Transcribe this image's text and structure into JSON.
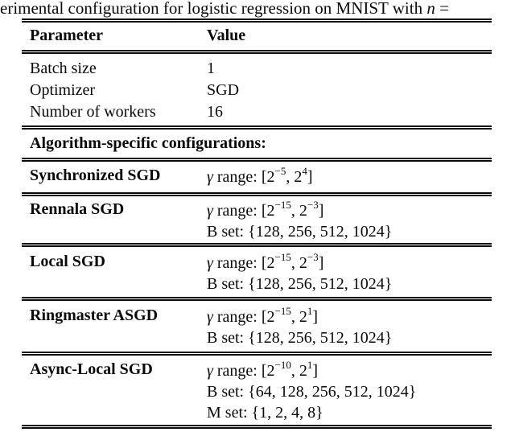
{
  "caption": {
    "prefix": "erimental configuration for logistic regression on MNIST with",
    "math_var": "n",
    "equals": "="
  },
  "table": {
    "header": {
      "parameter": "Parameter",
      "value": "Value"
    },
    "general_rows": [
      {
        "parameter": "Batch size",
        "value": "1"
      },
      {
        "parameter": "Optimizer",
        "value": "SGD"
      },
      {
        "parameter": "Number of workers",
        "value": "16"
      }
    ],
    "section_header": "Algorithm-specific configurations:",
    "algorithms": [
      {
        "name": "Synchronized SGD",
        "gamma_symbol": "γ",
        "gamma_open": " range: [2",
        "exp_lo": "−5",
        "gamma_mid": ", 2",
        "exp_hi": "4",
        "gamma_close": "]"
      },
      {
        "name": "Rennala SGD",
        "gamma_symbol": "γ",
        "gamma_open": " range: [2",
        "exp_lo": "−15",
        "gamma_mid": ", 2",
        "exp_hi": "−3",
        "gamma_close": "]",
        "b_set": "B set: {128, 256, 512, 1024}"
      },
      {
        "name": "Local SGD",
        "gamma_symbol": "γ",
        "gamma_open": " range: [2",
        "exp_lo": "−15",
        "gamma_mid": ", 2",
        "exp_hi": "−3",
        "gamma_close": "]",
        "b_set": "B set: {128, 256, 512, 1024}"
      },
      {
        "name": "Ringmaster ASGD",
        "gamma_symbol": "γ",
        "gamma_open": " range: [2",
        "exp_lo": "−15",
        "gamma_mid": ", 2",
        "exp_hi": "1",
        "gamma_close": "]",
        "b_set": "B set: {128, 256, 512, 1024}"
      },
      {
        "name": "Async-Local SGD",
        "gamma_symbol": "γ",
        "gamma_open": " range: [2",
        "exp_lo": "−10",
        "gamma_mid": ", 2",
        "exp_hi": "1",
        "gamma_close": "]",
        "b_set": "B set: {64, 128, 256, 512, 1024}",
        "m_set": "M set: {1, 2, 4, 8}"
      }
    ]
  }
}
